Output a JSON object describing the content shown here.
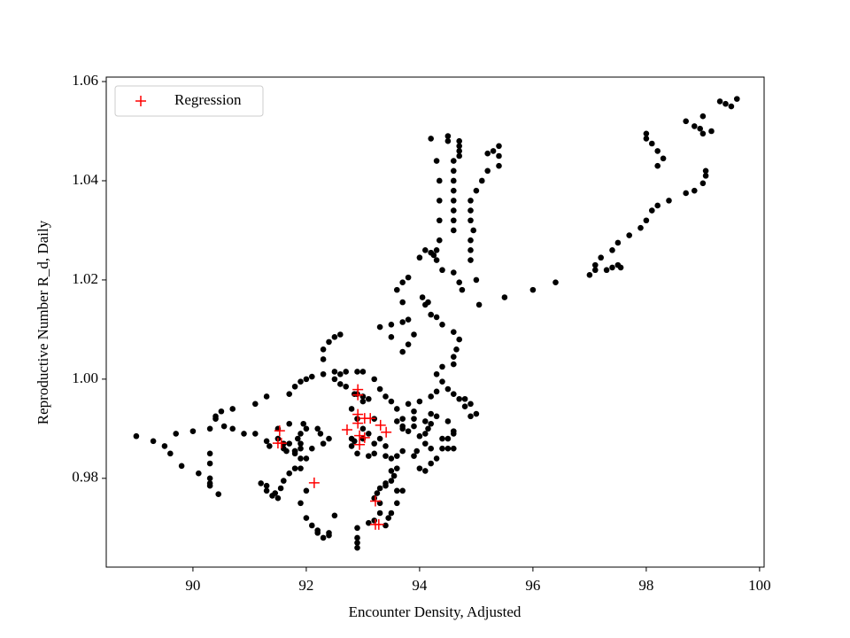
{
  "chart_data": {
    "type": "scatter",
    "xlabel": "Encounter Density, Adjusted",
    "ylabel": "Reproductive Number R_d, Daily",
    "xlim": [
      88.47,
      100.08
    ],
    "ylim": [
      0.9621,
      1.0609
    ],
    "xticks": [
      90,
      92,
      94,
      96,
      98,
      100
    ],
    "yticks": [
      0.98,
      {
        "value": 1,
        "label": "1.00"
      },
      1.02,
      1.04,
      1.06
    ],
    "grid": false,
    "legend": "upper left",
    "series": [
      {
        "color": "#000000",
        "marker": "dot",
        "x": [
          89.0,
          89.3,
          89.5,
          89.6,
          89.7,
          89.8,
          90.0,
          90.1,
          90.3,
          90.3,
          90.3,
          90.3,
          90.3,
          90.45,
          90.3,
          90.4,
          90.4,
          90.5,
          90.7,
          90.55,
          90.7,
          90.9,
          91.1,
          91.3,
          91.1,
          91.3,
          91.35,
          91.3,
          91.2,
          91.3,
          91.4,
          91.45,
          91.5,
          91.55,
          91.6,
          91.7,
          91.8,
          91.9,
          91.9,
          91.8,
          91.9,
          91.9,
          91.85,
          91.7,
          91.8,
          91.9,
          92.0,
          91.95,
          91.7,
          91.5,
          91.6,
          91.8,
          92.0,
          91.9,
          92.0,
          92.1,
          92.2,
          92.3,
          92.4,
          92.5,
          92.2,
          92.4,
          91.7,
          91.8,
          91.9,
          92.0,
          92.1,
          92.3,
          92.5,
          92.3,
          92.3,
          92.4,
          92.5,
          92.6,
          92.5,
          92.6,
          92.7,
          92.6,
          92.7,
          92.9,
          93.0,
          92.85,
          93.0,
          93.1,
          93.2,
          93.3,
          93.4,
          93.5,
          93.6,
          93.7,
          93.7,
          93.8,
          93.9,
          94.0,
          94.2,
          94.3,
          94.4,
          94.5,
          94.6,
          94.7,
          94.8,
          94.9,
          94.3,
          94.4,
          94.6,
          94.6,
          94.65,
          94.7,
          94.6,
          94.4,
          94.2,
          94.1,
          94.05,
          94.15,
          94.3,
          93.9,
          93.8,
          93.7,
          93.5,
          93.3,
          93.5,
          93.7,
          93.8,
          93.7,
          93.6,
          93.7,
          93.8,
          94.0,
          94.1,
          94.2,
          94.3,
          94.4,
          94.6,
          94.7,
          94.75,
          94.6,
          94.6,
          94.6,
          94.6,
          94.6,
          94.6,
          94.6,
          94.6,
          94.5,
          94.5,
          94.7,
          94.7,
          94.7,
          94.7,
          94.2,
          94.3,
          94.35,
          94.35,
          94.35,
          94.35,
          94.3,
          94.25,
          95.0,
          94.9,
          94.9,
          94.9,
          94.95,
          94.9,
          94.9,
          94.9,
          95.0,
          95.1,
          95.2,
          95.4,
          95.4,
          95.4,
          95.3,
          95.2,
          95.05,
          95.5,
          96.0,
          96.4,
          97.0,
          97.1,
          97.1,
          97.2,
          97.3,
          97.4,
          97.5,
          97.55,
          97.4,
          97.5,
          97.7,
          97.9,
          98.0,
          98.1,
          98.2,
          98.4,
          98.7,
          98.85,
          99.0,
          99.05,
          99.05,
          98.0,
          98.0,
          98.1,
          98.2,
          98.3,
          98.2,
          98.7,
          98.85,
          98.95,
          99.0,
          99.0,
          99.15,
          99.3,
          99.4,
          99.5,
          99.6,
          92.9,
          92.9,
          92.9,
          92.9,
          93.1,
          93.2,
          93.2,
          93.25,
          93.3,
          93.4,
          93.5,
          93.55,
          93.6,
          93.7,
          93.6,
          93.5,
          93.45,
          93.4,
          93.3,
          93.3,
          93.4,
          93.5,
          93.6,
          93.6,
          93.7,
          93.5,
          93.4,
          93.2,
          93.1,
          93.2,
          93.0,
          93.1,
          93.3,
          93.4,
          93.9,
          93.95,
          94.0,
          94.1,
          94.2,
          94.3,
          94.2,
          94.1,
          94.1,
          94.15,
          94.2,
          94.1,
          94.2,
          94.3,
          94.5,
          94.6,
          94.6,
          94.5,
          94.4,
          94.5,
          94.6,
          94.4,
          93.9,
          93.9,
          94.0,
          93.8,
          93.7,
          93.6,
          92.9,
          93.0,
          93.0,
          93.2,
          92.9,
          92.8,
          92.85,
          92.9,
          92.8,
          91.5,
          91.6,
          91.65,
          92.2,
          92.3,
          92.1,
          92.0,
          92.25,
          92.4,
          92.8,
          94.8,
          94.9,
          95.0
        ],
        "values": [
          0.9885,
          0.9875,
          0.9865,
          0.985,
          0.989,
          0.9825,
          0.9895,
          0.981,
          0.979,
          0.9785,
          0.98,
          0.983,
          0.985,
          0.9768,
          0.99,
          0.992,
          0.9925,
          0.9935,
          0.994,
          0.9905,
          0.99,
          0.989,
          0.995,
          0.9965,
          0.989,
          0.9875,
          0.9865,
          0.9785,
          0.979,
          0.9775,
          0.9765,
          0.977,
          0.976,
          0.978,
          0.9795,
          0.981,
          0.982,
          0.982,
          0.984,
          0.9855,
          0.986,
          0.987,
          0.988,
          0.987,
          0.9855,
          0.989,
          0.99,
          0.991,
          0.991,
          0.988,
          0.986,
          0.985,
          0.9775,
          0.975,
          0.972,
          0.9705,
          0.969,
          0.968,
          0.969,
          0.9725,
          0.9695,
          0.9685,
          0.997,
          0.9985,
          0.9995,
          1.0,
          1.0005,
          1.001,
          1.0015,
          1.004,
          1.006,
          1.0075,
          1.0085,
          1.009,
          1.0,
          0.999,
          0.9985,
          1.001,
          1.0015,
          1.0015,
          1.0015,
          0.997,
          0.9965,
          0.996,
          1.0,
          0.998,
          0.9965,
          0.9955,
          0.994,
          0.992,
          0.99,
          0.995,
          0.9935,
          0.9955,
          0.9965,
          0.9975,
          0.9995,
          0.998,
          0.997,
          0.996,
          0.9945,
          0.9925,
          1.001,
          1.0025,
          1.003,
          1.0045,
          1.006,
          1.008,
          1.0095,
          1.011,
          1.013,
          1.015,
          1.0165,
          1.0155,
          1.0125,
          1.009,
          1.007,
          1.0055,
          1.0085,
          1.0105,
          1.011,
          1.0115,
          1.012,
          1.0155,
          1.018,
          1.0195,
          1.0205,
          1.0245,
          1.026,
          1.0255,
          1.024,
          1.022,
          1.0215,
          1.0195,
          1.018,
          1.03,
          1.032,
          1.034,
          1.036,
          1.038,
          1.04,
          1.042,
          1.044,
          1.048,
          1.049,
          1.047,
          1.046,
          1.045,
          1.048,
          1.0485,
          1.044,
          1.04,
          1.036,
          1.032,
          1.028,
          1.026,
          1.025,
          1.02,
          1.024,
          1.026,
          1.028,
          1.03,
          1.032,
          1.034,
          1.036,
          1.038,
          1.04,
          1.042,
          1.043,
          1.045,
          1.047,
          1.046,
          1.0455,
          1.015,
          1.0165,
          1.018,
          1.0195,
          1.021,
          1.022,
          1.023,
          1.0245,
          1.022,
          1.0225,
          1.023,
          1.0225,
          1.026,
          1.0275,
          1.029,
          1.0305,
          1.032,
          1.034,
          1.035,
          1.036,
          1.0375,
          1.038,
          1.0395,
          1.041,
          1.042,
          1.0495,
          1.0485,
          1.0475,
          1.046,
          1.0445,
          1.043,
          1.052,
          1.051,
          1.0505,
          1.0495,
          1.053,
          1.05,
          1.056,
          1.0555,
          1.055,
          1.0565,
          0.97,
          0.968,
          0.967,
          0.966,
          0.971,
          0.9715,
          0.976,
          0.977,
          0.978,
          0.979,
          0.9795,
          0.9805,
          0.9775,
          0.9775,
          0.975,
          0.973,
          0.972,
          0.9705,
          0.973,
          0.975,
          0.9785,
          0.9815,
          0.982,
          0.9845,
          0.9855,
          0.984,
          0.9845,
          0.985,
          0.9845,
          0.987,
          0.988,
          0.989,
          0.988,
          0.9865,
          0.9845,
          0.9855,
          0.982,
          0.9815,
          0.983,
          0.984,
          0.986,
          0.987,
          0.989,
          0.99,
          0.991,
          0.9915,
          0.993,
          0.9925,
          0.9915,
          0.9895,
          0.989,
          0.988,
          0.988,
          0.986,
          0.986,
          0.986,
          0.992,
          0.9905,
          0.9885,
          0.9895,
          0.9905,
          0.9915,
          0.997,
          0.9955,
          0.99,
          0.992,
          0.985,
          0.9865,
          0.9875,
          0.992,
          0.994,
          0.99,
          0.987,
          0.9855,
          0.99,
          0.987,
          0.986,
          0.984,
          0.989,
          0.988,
          0.988,
          0.996,
          0.995,
          0.993
        ]
      },
      {
        "name": "Regression",
        "color": "#ff0000",
        "marker": "plus",
        "x": [
          91.53,
          91.5,
          91.56,
          92.14,
          92.72,
          92.91,
          92.91,
          92.91,
          92.94,
          92.94,
          93.03,
          93.03,
          93.13,
          93.22,
          93.22,
          93.28,
          93.31,
          93.41,
          92.91
        ],
        "values": [
          0.9896,
          0.9871,
          0.9871,
          0.9791,
          0.9898,
          0.9979,
          0.9929,
          0.9911,
          0.9886,
          0.9868,
          0.9882,
          0.9921,
          0.9921,
          0.9754,
          0.9707,
          0.9707,
          0.9907,
          0.9893,
          0.9968
        ]
      }
    ]
  }
}
